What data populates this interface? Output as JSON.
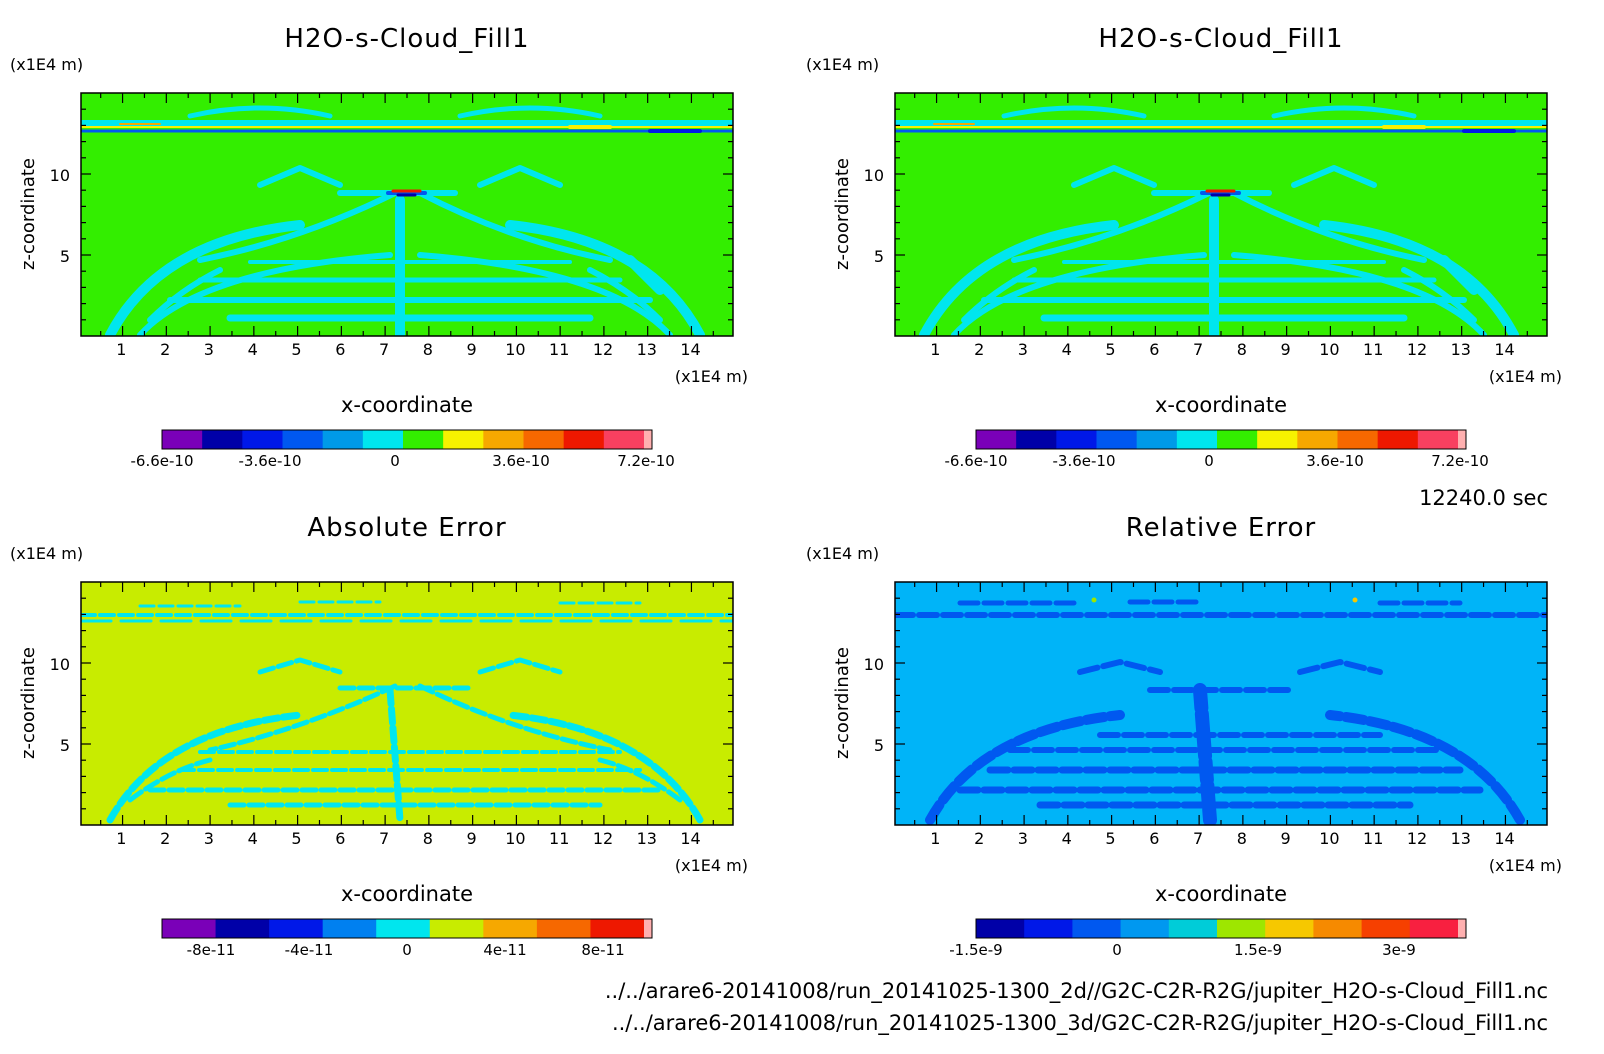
{
  "chart_data": [
    {
      "type": "heatmap",
      "title": "H2O-s-Cloud_Fill1",
      "xlabel": "x-coordinate",
      "ylabel": "z-coordinate",
      "x_unit": "(x1E4 m)",
      "y_unit": "(x1E4 m)",
      "xlim": [
        0.05,
        14.95
      ],
      "ylim": [
        0,
        15
      ],
      "x_ticks": [
        1,
        2,
        3,
        4,
        5,
        6,
        7,
        8,
        9,
        10,
        11,
        12,
        13,
        14
      ],
      "y_ticks": [
        5,
        10
      ],
      "background": "#33ee00",
      "colorbar": {
        "colors": [
          "#7a00b8",
          "#0000a8",
          "#0018e8",
          "#0058f0",
          "#009ae8",
          "#00e6ee",
          "#33ee00",
          "#f6f200",
          "#f6a800",
          "#f66800",
          "#ee1800",
          "#f84060",
          "#ffb0b0"
        ],
        "tick_labels": [
          "-6.6e-10",
          "-3.6e-10",
          "0",
          "3.6e-10",
          "7.2e-10"
        ]
      }
    },
    {
      "type": "heatmap",
      "title": "H2O-s-Cloud_Fill1",
      "xlabel": "x-coordinate",
      "ylabel": "z-coordinate",
      "x_unit": "(x1E4 m)",
      "y_unit": "(x1E4 m)",
      "xlim": [
        0.05,
        14.95
      ],
      "ylim": [
        0,
        15
      ],
      "x_ticks": [
        1,
        2,
        3,
        4,
        5,
        6,
        7,
        8,
        9,
        10,
        11,
        12,
        13,
        14
      ],
      "y_ticks": [
        5,
        10
      ],
      "background": "#33ee00",
      "colorbar": {
        "colors": [
          "#7a00b8",
          "#0000a8",
          "#0018e8",
          "#0058f0",
          "#009ae8",
          "#00e6ee",
          "#33ee00",
          "#f6f200",
          "#f6a800",
          "#f66800",
          "#ee1800",
          "#f84060",
          "#ffb0b0"
        ],
        "tick_labels": [
          "-6.6e-10",
          "-3.6e-10",
          "0",
          "3.6e-10",
          "7.2e-10"
        ]
      }
    },
    {
      "type": "heatmap",
      "title": "Absolute Error",
      "xlabel": "x-coordinate",
      "ylabel": "z-coordinate",
      "x_unit": "(x1E4 m)",
      "y_unit": "(x1E4 m)",
      "xlim": [
        0.05,
        14.95
      ],
      "ylim": [
        0,
        15
      ],
      "x_ticks": [
        1,
        2,
        3,
        4,
        5,
        6,
        7,
        8,
        9,
        10,
        11,
        12,
        13,
        14
      ],
      "y_ticks": [
        5,
        10
      ],
      "background": "#c8ec00",
      "colorbar": {
        "colors": [
          "#7a00b8",
          "#0000a8",
          "#0018e8",
          "#0080f0",
          "#00e6ee",
          "#c8ec00",
          "#f6a800",
          "#f66800",
          "#ee1800",
          "#ffb0b0"
        ],
        "tick_labels": [
          "-8e-11",
          "-4e-11",
          "0",
          "4e-11",
          "8e-11"
        ]
      }
    },
    {
      "type": "heatmap",
      "title": "Relative Error",
      "xlabel": "x-coordinate",
      "ylabel": "z-coordinate",
      "x_unit": "(x1E4 m)",
      "y_unit": "(x1E4 m)",
      "xlim": [
        0.05,
        14.95
      ],
      "ylim": [
        0,
        15
      ],
      "x_ticks": [
        1,
        2,
        3,
        4,
        5,
        6,
        7,
        8,
        9,
        10,
        11,
        12,
        13,
        14
      ],
      "y_ticks": [
        5,
        10
      ],
      "background": "#00b4f8",
      "colorbar": {
        "colors": [
          "#0000a8",
          "#0018e8",
          "#0058f0",
          "#0098f0",
          "#00ccd8",
          "#9ee600",
          "#f6c800",
          "#f68a00",
          "#f64000",
          "#f82040",
          "#ffb0b0"
        ],
        "tick_labels": [
          "-1.5e-9",
          "0",
          "1.5e-9",
          "3e-9"
        ]
      }
    }
  ],
  "time_label": "12240.0 sec",
  "files": [
    "../../arare6-20141008/run_20141025-1300_2d//G2C-C2R-R2G/jupiter_H2O-s-Cloud_Fill1.nc",
    "../../arare6-20141008/run_20141025-1300_3d/G2C-C2R-R2G/jupiter_H2O-s-Cloud_Fill1.nc"
  ]
}
